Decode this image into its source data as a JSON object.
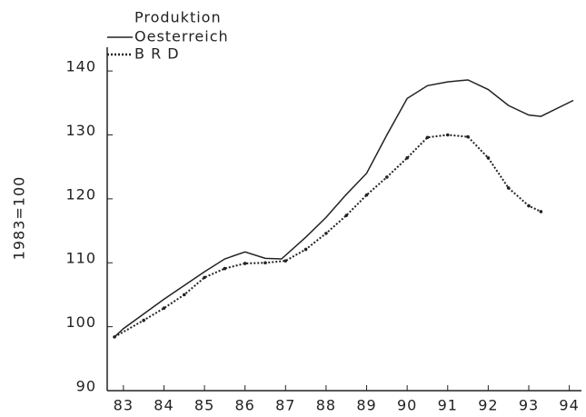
{
  "chart_data": {
    "type": "line",
    "legend_title": "Produktion",
    "y_label": "1983=100",
    "xlim": [
      82.6,
      94.3
    ],
    "xticks": [
      83,
      84,
      85,
      86,
      87,
      88,
      89,
      90,
      91,
      92,
      93,
      94
    ],
    "ylim": [
      90,
      143
    ],
    "yticks": [
      90,
      100,
      110,
      120,
      130,
      140
    ],
    "legend": "top-left",
    "series": [
      {
        "name": "Oesterreich",
        "color": "#222222",
        "style": "solid",
        "x": [
          82.78,
          83.0,
          84.0,
          85.0,
          85.5,
          86.0,
          86.5,
          86.9,
          87.5,
          88.0,
          88.5,
          89.0,
          89.5,
          90.0,
          90.5,
          91.0,
          91.5,
          92.0,
          92.5,
          93.0,
          93.3,
          94.1
        ],
        "values": [
          98.4,
          99.7,
          104.3,
          108.6,
          110.6,
          111.7,
          110.7,
          110.6,
          114,
          117.1,
          120.7,
          124,
          130,
          135.7,
          137.7,
          138.3,
          138.6,
          137.1,
          134.6,
          133.1,
          132.9,
          135.4
        ]
      },
      {
        "name": "B R D",
        "color": "#222222",
        "style": "dotted",
        "x": [
          82.78,
          83.5,
          84.0,
          84.5,
          85.0,
          85.5,
          86.0,
          86.5,
          87.0,
          87.5,
          88.0,
          88.5,
          89.0,
          89.5,
          90.0,
          90.5,
          91.0,
          91.5,
          92.0,
          92.5,
          93.0,
          93.3
        ],
        "values": [
          98.4,
          101,
          102.9,
          105,
          107.7,
          109.1,
          109.9,
          110,
          110.3,
          112.1,
          114.6,
          117.4,
          120.6,
          123.4,
          126.4,
          129.6,
          130,
          129.7,
          126.4,
          121.7,
          118.9,
          118
        ]
      }
    ]
  }
}
